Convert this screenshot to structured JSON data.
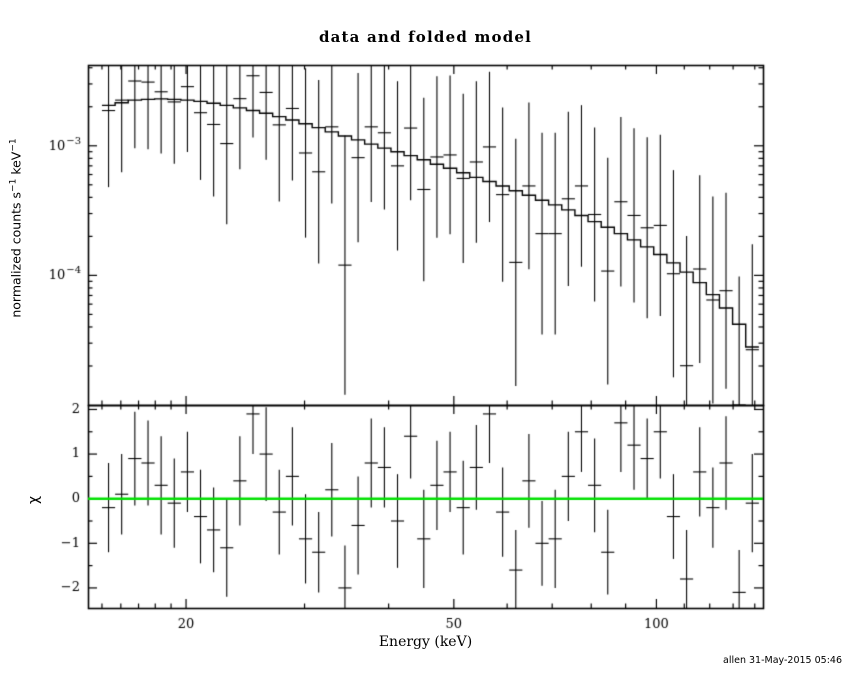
{
  "signature": "allen 31-May-2015 05:46",
  "chart_data": {
    "type": "line",
    "subtype": "xspec_data_and_folded_model_with_chi_residuals",
    "title": "data and folded model",
    "xlabel": "Energy (keV)",
    "ylabel_parts": {
      "pre": "normalized counts s",
      "sup1": "−1",
      "mid": " keV",
      "sup2": "−1"
    },
    "chi_label": "χ",
    "x_scale": "log",
    "xlim": [
      14.3,
      144
    ],
    "x_ticks_major": [
      {
        "v": 20,
        "label": "20"
      },
      {
        "v": 50,
        "label": "50"
      },
      {
        "v": 100,
        "label": "100"
      }
    ],
    "x_ticks_minor": [
      15,
      16,
      17,
      18,
      19,
      30,
      40,
      60,
      70,
      80,
      90,
      110,
      120,
      130,
      140
    ],
    "top_panel": {
      "y_scale": "log",
      "ylim": [
        1e-05,
        0.0042
      ],
      "y_ticks_major": [
        {
          "v": 0.001,
          "base": "10",
          "exp": "−3"
        },
        {
          "v": 0.0001,
          "base": "10",
          "exp": "−4"
        }
      ],
      "model_color": "#000000",
      "data_color": "#000000"
    },
    "bottom_panel": {
      "y_scale": "linear",
      "ylim": [
        -2.45,
        2.1
      ],
      "y_ticks_major": [
        {
          "v": 2,
          "label": "2"
        },
        {
          "v": 1,
          "label": "1"
        },
        {
          "v": 0,
          "label": "0"
        },
        {
          "v": -1,
          "label": "−1"
        },
        {
          "v": -2,
          "label": "−2"
        }
      ],
      "y_ticks_minor": [
        -1.5,
        -0.5,
        0.5,
        1.5
      ],
      "zero_line_color": "#00e000"
    },
    "bin_edges": [
      15.0,
      15.69,
      16.41,
      17.17,
      17.96,
      18.78,
      19.65,
      20.55,
      21.49,
      22.48,
      23.51,
      24.59,
      25.72,
      26.9,
      28.14,
      29.43,
      30.79,
      32.2,
      33.68,
      35.23,
      36.85,
      38.55,
      40.32,
      42.17,
      44.11,
      46.14,
      48.26,
      50.48,
      52.8,
      55.23,
      57.77,
      60.43,
      63.21,
      66.11,
      69.15,
      72.33,
      75.66,
      79.14,
      82.78,
      86.58,
      90.56,
      94.73,
      99.08,
      103.64,
      108.41,
      113.39,
      118.61,
      124.06,
      129.77,
      135.73,
      141.98
    ],
    "model": [
      0.00205,
      0.00215,
      0.00225,
      0.00228,
      0.0023,
      0.00228,
      0.00225,
      0.0022,
      0.00213,
      0.00205,
      0.00196,
      0.00187,
      0.00178,
      0.00168,
      0.00158,
      0.00148,
      0.00138,
      0.00128,
      0.00119,
      0.00111,
      0.00103,
      0.00096,
      0.0009,
      0.00084,
      0.00078,
      0.00072,
      0.00067,
      0.00062,
      0.00057,
      0.00053,
      0.00049,
      0.00045,
      0.000415,
      0.00038,
      0.00035,
      0.00032,
      0.00029,
      0.00026,
      0.000235,
      0.00021,
      0.000188,
      0.000166,
      0.000145,
      0.000125,
      0.000106,
      8.8e-05,
      7.1e-05,
      5.6e-05,
      4.2e-05,
      2.8e-05
    ],
    "data_y": [
      0.00187,
      0.00225,
      0.00316,
      0.0031,
      0.00261,
      0.00218,
      0.00286,
      0.0018,
      0.00146,
      0.00104,
      0.00231,
      0.00347,
      0.00258,
      0.00145,
      0.00194,
      0.00088,
      0.00063,
      0.0014,
      0.00012,
      0.00081,
      0.0014,
      0.00126,
      0.0007,
      0.00137,
      0.00046,
      0.00082,
      0.00085,
      0.00056,
      0.00075,
      0.00098,
      0.00042,
      0.000126,
      0.00049,
      0.00021,
      0.00021,
      0.00039,
      0.00049,
      0.000295,
      0.000108,
      0.00037,
      0.00029,
      0.000233,
      0.000243,
      0.000103,
      2.01e-05,
      0.000112,
      6.46e-05,
      7.62e-05,
      1e-05,
      2.67e-05
    ],
    "err_factor": [
      3.9,
      3.6,
      3.3,
      3.3,
      3.0,
      3.0,
      3.2,
      3.3,
      3.6,
      4.2,
      3.5,
      3.0,
      3.3,
      3.9,
      3.6,
      4.5,
      5.1,
      3.9,
      10,
      4.5,
      3.8,
      3.9,
      4.5,
      3.6,
      5.1,
      4.2,
      4.1,
      4.5,
      4.2,
      3.8,
      4.7,
      9.0,
      4.4,
      6.0,
      6.0,
      4.7,
      4.2,
      4.7,
      7.5,
      4.5,
      4.7,
      5.0,
      5.0,
      6.3,
      10,
      5.3,
      6.3,
      5.7,
      9.8,
      6.5
    ],
    "chi": [
      -0.2,
      0.1,
      0.9,
      0.8,
      0.3,
      -0.1,
      0.6,
      -0.4,
      -0.7,
      -1.1,
      0.4,
      1.9,
      1.0,
      -0.3,
      0.5,
      -0.9,
      -1.2,
      0.2,
      -2.0,
      -0.6,
      0.8,
      0.7,
      -0.5,
      1.4,
      -0.9,
      0.3,
      0.6,
      -0.2,
      0.7,
      1.9,
      -0.3,
      -1.6,
      0.4,
      -1.0,
      -0.9,
      0.5,
      1.5,
      0.3,
      -1.2,
      1.7,
      1.2,
      0.9,
      1.5,
      -0.4,
      -1.8,
      0.6,
      -0.2,
      0.8,
      -2.1,
      -0.1
    ],
    "chi_err": [
      1.0,
      0.9,
      1.05,
      0.95,
      1.1,
      1.0,
      0.9,
      1.05,
      0.95,
      1.1,
      1.0,
      0.9,
      1.05,
      0.95,
      1.1,
      1.0,
      0.9,
      1.05,
      0.95,
      1.1,
      1.0,
      0.9,
      1.05,
      0.95,
      1.1,
      1.0,
      0.9,
      1.05,
      0.95,
      1.1,
      1.0,
      0.9,
      1.05,
      0.95,
      1.1,
      1.0,
      0.9,
      1.05,
      0.95,
      1.1,
      1.0,
      0.9,
      1.05,
      0.95,
      1.1,
      1.0,
      0.9,
      1.05,
      0.95,
      1.1
    ]
  }
}
